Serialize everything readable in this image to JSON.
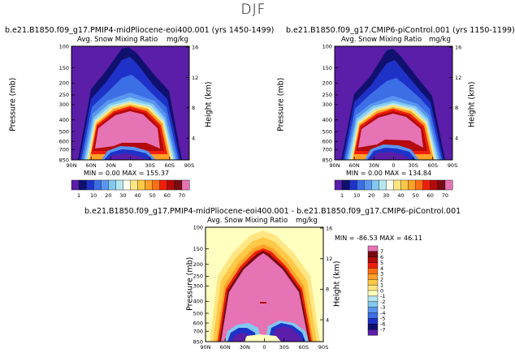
{
  "title": "DJF",
  "panels": [
    {
      "case": "b.e21.B1850.f09_g17.PMIP4-midPliocene-eoi400.001 (yrs 1450-1499)",
      "variable": "Avg. Snow Mixing Ratio",
      "units": "mg/kg",
      "stats": "MIN =    0.00   MAX = 155.37"
    },
    {
      "case": "b.e21.B1850.f09_g17.CMIP6-piControl.001 (yrs 1150-1199)",
      "variable": "Avg. Snow Mixing Ratio",
      "units": "mg/kg",
      "stats": "MIN =    0.00   MAX = 134.84"
    },
    {
      "case": "b.e21.B1850.f09_g17.PMIP4-midPliocene-eoi400.001 - b.e21.B1850.f09_g17.CMIP6-piControl.001",
      "variable": "Avg. Snow Mixing Ratio",
      "units": "mg/kg",
      "stats": "MIN = -86.53   MAX =  46.11"
    }
  ],
  "axes": {
    "ylabel_left": "Pressure (mb)",
    "ylabel_right": "Height (km)"
  },
  "colorbars": {
    "absolute": {
      "labels": [
        "1",
        "10",
        "20",
        "30",
        "40",
        "50",
        "60",
        "70"
      ],
      "colors": [
        "#5a1ea8",
        "#10106e",
        "#1e32c8",
        "#3c6ee6",
        "#5a96f0",
        "#82c8f0",
        "#b4e6f0",
        "#fffff0",
        "#ffe682",
        "#ffc846",
        "#ffa028",
        "#ff6e14",
        "#f01e0a",
        "#b40a0a",
        "#780a14",
        "#e673b4"
      ]
    },
    "difference": {
      "labels": [
        "7",
        "6",
        "5",
        "4",
        "3",
        "2",
        "1",
        "0",
        "-1",
        "-2",
        "-3",
        "-4",
        "-5",
        "-6",
        "-7"
      ],
      "colors": [
        "#e673b4",
        "#780a14",
        "#b40a0a",
        "#f01e0a",
        "#ff6e14",
        "#ffa028",
        "#ffc846",
        "#ffe682",
        "#ffffc0",
        "#b4e6f0",
        "#82c8f0",
        "#5a96f0",
        "#3c6ee6",
        "#1e32c8",
        "#10106e",
        "#5a1ea8"
      ]
    }
  },
  "chart_data": [
    {
      "type": "heatmap",
      "title": "b.e21.B1850.f09_g17.PMIP4-midPliocene-eoi400.001 (yrs 1450-1499)",
      "subtitle": "Avg. Snow Mixing Ratio (mg/kg)",
      "xlabel": "",
      "x_ticks": [
        "90N",
        "60N",
        "30N",
        "0",
        "30S",
        "60S",
        "90S"
      ],
      "ylabel": "Pressure (mb)",
      "y_ticks": [
        100,
        150,
        200,
        250,
        300,
        400,
        500,
        600,
        700,
        850
      ],
      "y2label": "Height (km)",
      "y2_ticks": [
        4,
        8,
        12,
        16
      ],
      "min": 0.0,
      "max": 155.37
    },
    {
      "type": "heatmap",
      "title": "b.e21.B1850.f09_g17.CMIP6-piControl.001 (yrs 1150-1199)",
      "subtitle": "Avg. Snow Mixing Ratio (mg/kg)",
      "xlabel": "",
      "x_ticks": [
        "90N",
        "60N",
        "30N",
        "0",
        "30S",
        "60S",
        "90S"
      ],
      "ylabel": "Pressure (mb)",
      "y_ticks": [
        100,
        150,
        200,
        250,
        300,
        400,
        500,
        600,
        700,
        850
      ],
      "y2label": "Height (km)",
      "y2_ticks": [
        4,
        8,
        12,
        16
      ],
      "min": 0.0,
      "max": 134.84
    },
    {
      "type": "heatmap",
      "title": "b.e21.B1850.f09_g17.PMIP4-midPliocene-eoi400.001 - b.e21.B1850.f09_g17.CMIP6-piControl.001",
      "subtitle": "Avg. Snow Mixing Ratio (mg/kg)",
      "xlabel": "",
      "x_ticks": [
        "90N",
        "60N",
        "30N",
        "0",
        "30S",
        "60S",
        "90S"
      ],
      "ylabel": "Pressure (mb)",
      "y_ticks": [
        100,
        150,
        200,
        250,
        300,
        400,
        500,
        600,
        700,
        850
      ],
      "y2label": "Height (km)",
      "y2_ticks": [
        4,
        8,
        12,
        16
      ],
      "min": -86.53,
      "max": 46.11
    }
  ]
}
